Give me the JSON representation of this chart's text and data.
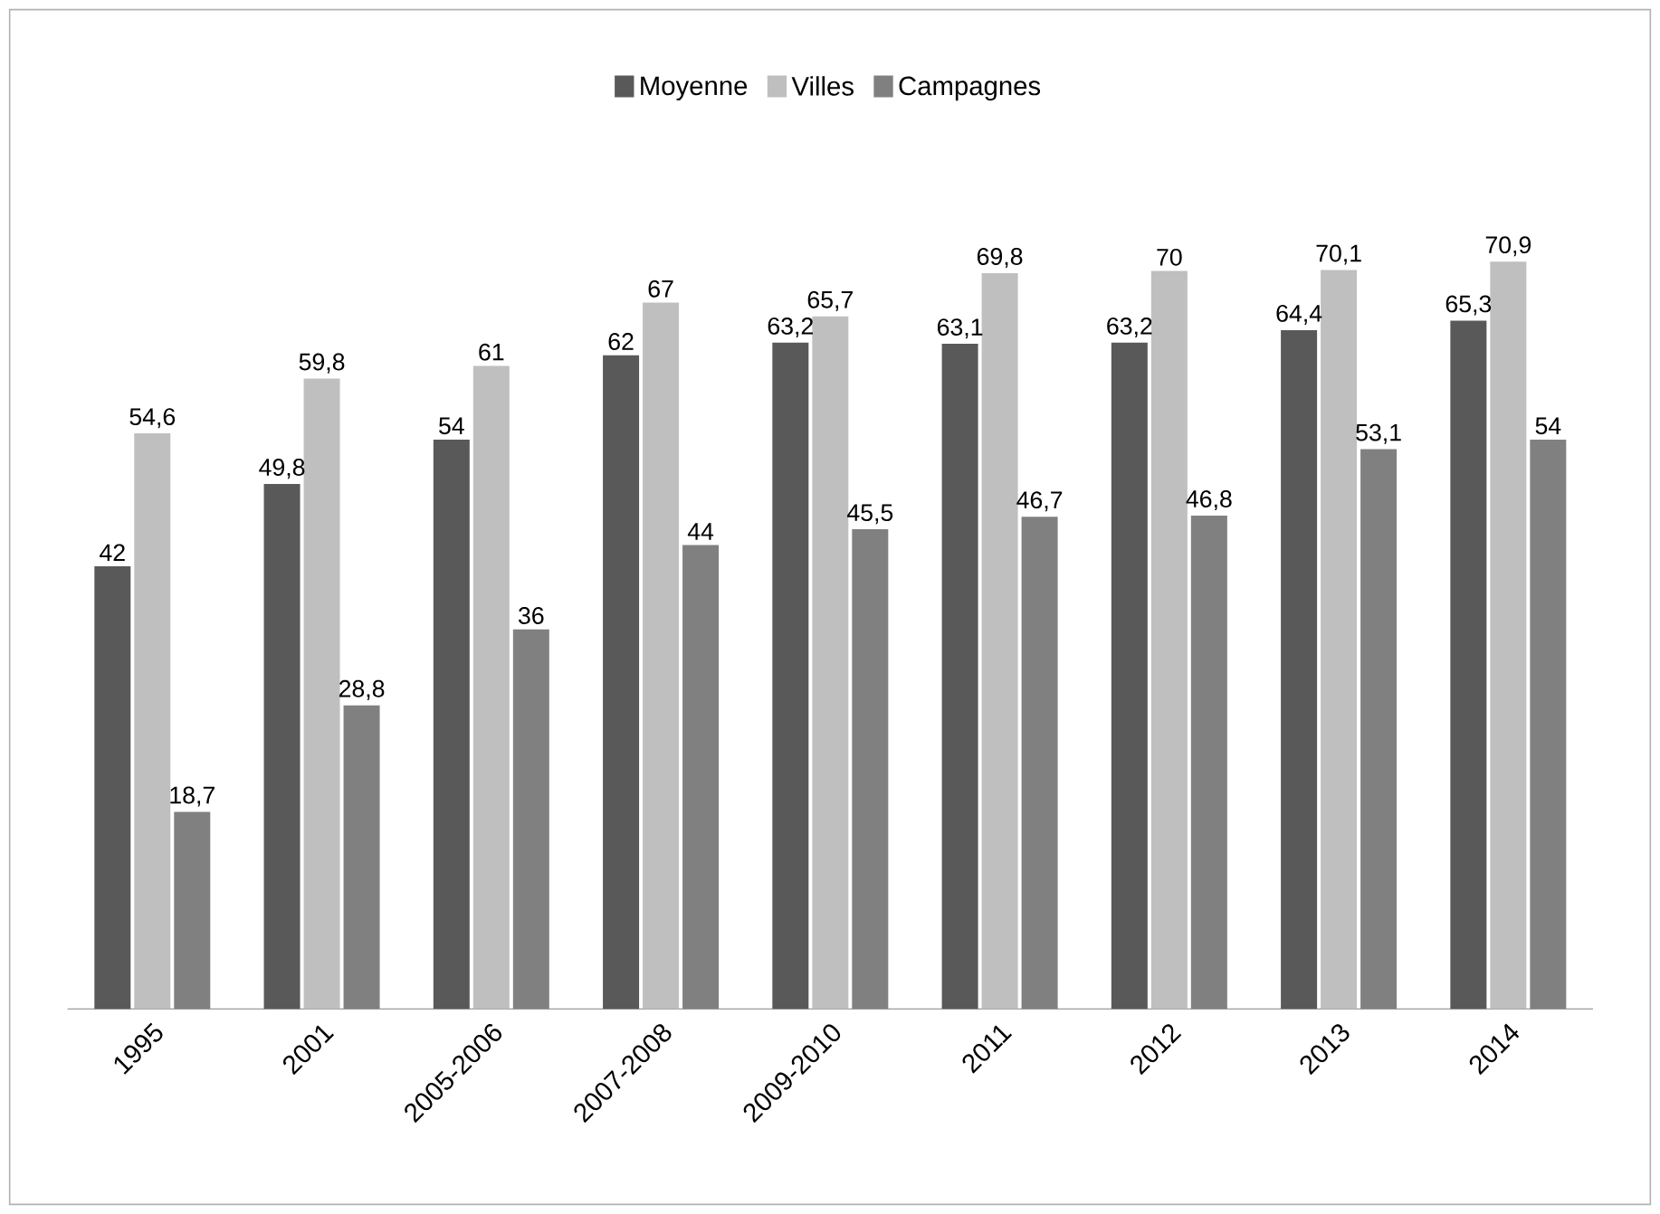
{
  "chart_data": {
    "type": "bar",
    "legend": "top",
    "categories": [
      "1995",
      "2001",
      "2005-2006",
      "2007-2008",
      "2009-2010",
      "2011",
      "2012",
      "2013",
      "2014"
    ],
    "series": [
      {
        "name": "Moyenne",
        "color": "#595959",
        "values": [
          42,
          49.8,
          54,
          62,
          63.2,
          63.1,
          63.2,
          64.4,
          65.3
        ],
        "value_labels": [
          "42",
          "49,8",
          "54",
          "62",
          "63,2",
          "63,1",
          "63,2",
          "64,4",
          "65,3"
        ]
      },
      {
        "name": "Villes",
        "color": "#bfbfbf",
        "values": [
          54.6,
          59.8,
          61,
          67,
          65.7,
          69.8,
          70,
          70.1,
          70.9
        ],
        "value_labels": [
          "54,6",
          "59,8",
          "61",
          "67",
          "65,7",
          "69,8",
          "70",
          "70,1",
          "70,9"
        ]
      },
      {
        "name": "Campagnes",
        "color": "#808080",
        "values": [
          18.7,
          28.8,
          36,
          44,
          45.5,
          46.7,
          46.8,
          53.1,
          54
        ],
        "value_labels": [
          "18,7",
          "28,8",
          "36",
          "44",
          "45,5",
          "46,7",
          "46,8",
          "53,1",
          "54"
        ]
      }
    ]
  }
}
